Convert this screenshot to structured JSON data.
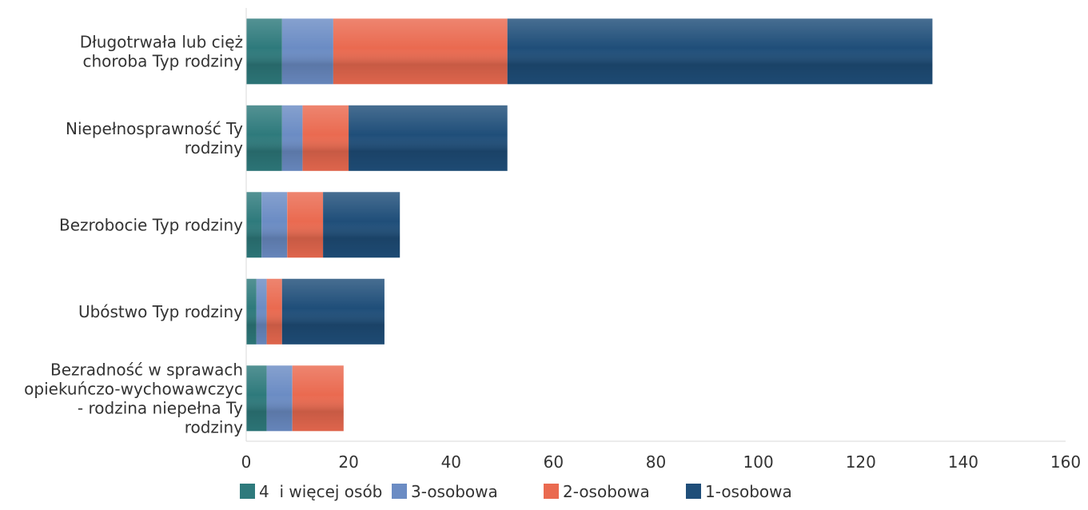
{
  "chart_data": {
    "type": "bar",
    "orientation": "horizontal",
    "stacked": true,
    "categories": [
      [
        "Długotrwała lub cięż",
        "choroba Typ rodziny"
      ],
      [
        "Niepełnosprawność Ty",
        "rodziny"
      ],
      [
        "Bezrobocie Typ rodziny"
      ],
      [
        "Ubóstwo Typ rodziny"
      ],
      [
        "Bezradność w sprawach",
        "opiekuńczo-wychowawczyc",
        "- rodzina niepełna Ty",
        "rodziny"
      ]
    ],
    "series": [
      {
        "name": "4  i więcej osób",
        "color": "#2e7a7c",
        "values": [
          7,
          7,
          3,
          2,
          4
        ]
      },
      {
        "name": "3-osobowa",
        "color": "#6b8cc4",
        "values": [
          10,
          4,
          5,
          2,
          5
        ]
      },
      {
        "name": "2-osobowa",
        "color": "#ea6a50",
        "values": [
          34,
          9,
          7,
          3,
          10
        ]
      },
      {
        "name": "1-osobowa",
        "color": "#1f4e79",
        "values": [
          83,
          31,
          15,
          20,
          0
        ]
      }
    ],
    "xlim": [
      0,
      160
    ],
    "xticks": [
      0,
      20,
      40,
      60,
      80,
      100,
      120,
      140,
      160
    ],
    "grid": false,
    "legend_position": "bottom"
  }
}
